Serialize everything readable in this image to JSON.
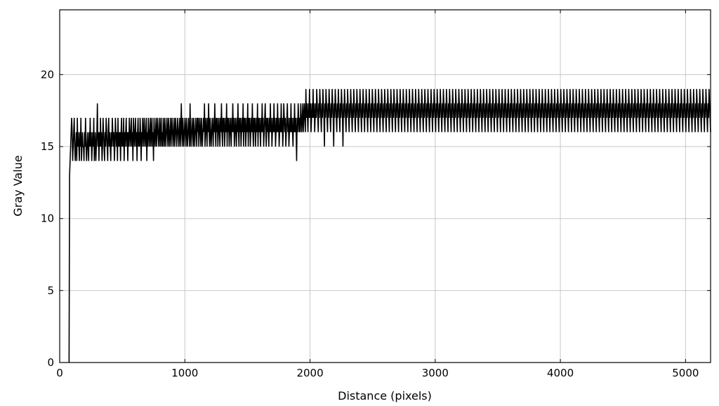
{
  "chart_data": {
    "type": "line",
    "title": "",
    "xlabel": "Distance (pixels)",
    "ylabel": "Gray Value",
    "xlim": [
      0,
      5200
    ],
    "ylim": [
      0,
      24.5
    ],
    "x_ticks": [
      0,
      1000,
      2000,
      3000,
      4000,
      5000
    ],
    "y_ticks": [
      0,
      5,
      10,
      15,
      20
    ],
    "grid": true,
    "legend": "none",
    "colors": {
      "series": "#000000",
      "grid": "#c8c8c8",
      "frame": "#000000",
      "background": "#ffffff"
    },
    "series": [
      {
        "x_start": 75,
        "x_end": 5200,
        "sample_step": 4,
        "values": [
          0,
          13,
          14,
          15,
          16,
          17,
          16,
          14,
          15,
          16,
          17,
          15,
          14,
          15,
          16,
          14,
          17,
          15,
          16,
          15,
          14,
          16,
          15,
          17,
          14,
          15,
          16,
          15,
          15,
          14,
          16,
          15,
          17,
          15,
          14,
          15,
          16,
          15,
          14,
          16,
          15,
          17,
          15,
          16,
          14,
          15,
          16,
          15,
          17,
          14,
          15,
          16,
          14,
          15,
          16,
          18,
          15,
          16,
          14,
          16,
          15,
          17,
          15,
          16,
          14,
          15,
          17,
          16,
          15,
          14,
          16,
          15,
          17,
          16,
          15,
          14,
          16,
          17,
          15,
          16,
          15,
          14,
          16,
          15,
          17,
          16,
          15,
          16,
          14,
          15,
          17,
          16,
          15,
          16,
          14,
          17,
          15,
          16,
          15,
          16,
          14,
          16,
          17,
          15,
          16,
          15,
          17,
          14,
          16,
          15,
          16,
          17,
          15,
          16,
          14,
          16,
          15,
          17,
          16,
          15,
          16,
          17,
          15,
          16,
          14,
          17,
          16,
          15,
          16,
          17,
          15,
          16,
          14,
          16,
          17,
          15,
          16,
          15,
          17,
          16,
          14,
          16,
          15,
          17,
          16,
          15,
          17,
          16,
          15,
          16,
          17,
          14,
          16,
          15,
          17,
          16,
          15,
          16,
          17,
          15,
          16,
          17,
          15,
          16,
          14,
          17,
          16,
          15,
          16,
          17,
          15,
          16,
          17,
          16,
          15,
          16,
          17,
          15,
          16,
          17,
          15,
          16,
          15,
          17,
          16,
          15,
          17,
          16,
          15,
          16,
          17,
          16,
          15,
          17,
          16,
          15,
          16,
          17,
          15,
          16,
          17,
          16,
          15,
          16,
          17,
          15,
          16,
          17,
          16,
          15,
          16,
          17,
          16,
          15,
          16,
          17,
          15,
          16,
          18,
          16,
          15,
          17,
          16,
          15,
          16,
          17,
          16,
          15,
          17,
          16,
          15,
          16,
          17,
          16,
          15,
          18,
          16,
          15,
          16,
          17,
          16,
          15,
          17,
          16,
          15,
          16,
          17,
          16,
          15,
          17,
          16,
          17,
          15,
          16,
          17,
          16,
          15,
          17,
          16,
          15,
          16,
          17,
          16,
          18,
          15,
          16,
          17,
          16,
          15,
          17,
          16,
          18,
          16,
          15,
          17,
          16,
          15,
          16,
          17,
          16,
          15,
          17,
          16,
          18,
          16,
          15,
          17,
          16,
          17,
          15,
          16,
          17,
          16,
          15,
          17,
          16,
          18,
          16,
          15,
          17,
          16,
          17,
          15,
          16,
          17,
          16,
          18,
          15,
          17,
          16,
          17,
          15,
          16,
          17,
          16,
          15,
          17,
          16,
          18,
          16,
          17,
          15,
          16,
          17,
          16,
          15,
          17,
          16,
          18,
          16,
          15,
          17,
          16,
          17,
          15,
          16,
          17,
          16,
          18,
          15,
          17,
          16,
          17,
          15,
          16,
          17,
          16,
          18,
          15,
          17,
          16,
          17,
          15,
          16,
          17,
          16,
          18,
          16,
          15,
          17,
          16,
          17,
          15,
          16,
          17,
          16,
          18,
          15,
          17,
          16,
          17,
          16,
          15,
          17,
          16,
          18,
          16,
          17,
          15,
          16,
          17,
          18,
          16,
          15,
          17,
          16,
          17,
          16,
          15,
          17,
          16,
          18,
          16,
          17,
          15,
          16,
          17,
          16,
          18,
          16,
          17,
          15,
          16,
          17,
          16,
          18,
          16,
          17,
          15,
          16,
          17,
          16,
          18,
          16,
          17,
          15,
          16,
          18,
          17,
          16,
          17,
          15,
          16,
          17,
          18,
          16,
          17,
          15,
          16,
          17,
          16,
          18,
          16,
          17,
          16,
          15,
          17,
          16,
          18,
          16,
          17,
          16,
          14,
          17,
          16,
          18,
          17,
          16,
          17,
          16,
          18,
          17,
          16,
          17,
          18,
          16,
          17,
          18,
          17,
          16,
          19,
          17,
          18,
          17,
          16,
          18,
          17,
          19,
          17,
          18,
          16,
          17,
          18,
          17,
          19,
          17,
          18,
          16,
          17,
          18,
          17,
          19,
          18,
          17,
          16,
          18,
          17,
          19,
          18,
          17,
          16,
          18,
          17,
          19,
          18,
          17,
          15,
          18,
          17,
          19,
          18,
          17,
          16,
          18,
          17,
          19,
          18,
          17,
          16,
          18,
          17,
          19,
          18,
          17,
          15,
          18,
          17,
          19,
          18,
          17,
          16,
          18,
          17,
          19,
          18,
          17,
          16,
          18,
          17,
          19,
          18,
          17,
          15,
          18,
          17,
          19,
          18,
          17,
          16,
          18,
          17,
          19,
          18,
          17,
          16,
          18,
          17,
          19,
          18,
          17,
          16,
          18,
          17,
          19,
          18,
          17,
          16,
          18,
          17,
          19,
          18,
          17,
          16,
          18,
          17,
          19,
          18,
          17,
          16,
          18,
          17,
          19,
          18,
          17,
          16,
          18,
          17,
          19,
          18,
          17,
          16,
          18,
          17,
          19,
          18,
          17,
          16,
          18,
          17,
          19,
          18,
          17,
          16,
          18,
          17,
          19,
          18,
          17,
          16,
          18,
          17,
          19,
          18,
          17,
          16,
          18,
          17,
          19,
          18,
          17,
          16,
          18,
          17,
          19,
          18,
          17,
          16,
          18,
          17,
          19,
          18,
          17,
          16,
          18,
          17,
          19,
          18,
          17,
          16,
          18,
          17,
          19,
          18,
          17,
          16,
          18,
          17,
          19,
          18,
          17,
          16,
          18,
          17,
          19,
          18,
          17,
          16,
          18,
          17,
          19,
          18,
          17,
          16,
          18,
          17,
          19,
          18,
          17,
          16,
          18,
          17,
          19,
          18,
          17,
          16,
          18,
          17,
          19,
          18,
          17,
          16,
          18,
          17,
          19,
          18,
          17,
          16,
          18,
          17,
          19,
          18,
          17,
          16,
          18,
          17,
          19,
          18,
          17,
          16,
          18,
          17,
          19,
          18,
          17,
          16,
          18,
          17,
          19,
          18,
          17,
          16,
          18,
          17,
          19,
          18,
          17,
          16,
          18,
          17,
          19,
          18,
          17,
          16,
          18,
          17,
          19,
          18,
          17,
          16,
          18,
          17,
          19,
          18,
          17,
          16,
          18,
          17,
          19,
          18,
          17,
          16,
          18,
          17,
          19,
          18,
          17,
          16,
          18,
          17,
          19,
          18,
          17,
          16,
          18,
          17,
          19,
          18,
          17,
          16,
          18,
          17,
          19,
          18,
          17,
          16,
          18,
          17,
          19,
          18,
          17,
          16,
          18,
          17,
          19,
          18,
          17,
          16,
          18,
          17,
          19,
          18,
          17,
          16,
          18,
          17,
          19,
          18,
          17,
          16,
          18,
          17,
          19,
          18,
          17,
          16,
          18,
          17,
          19,
          18,
          17,
          16,
          18,
          17,
          19,
          18,
          17,
          16,
          18,
          17,
          19,
          18,
          17,
          16,
          18,
          17,
          19,
          18,
          17,
          16,
          18,
          17,
          19,
          18,
          17,
          16,
          18,
          17,
          19,
          18,
          17,
          16,
          18,
          17,
          19,
          18,
          17,
          16,
          18,
          17,
          19,
          18,
          17,
          16,
          18,
          17,
          19,
          18,
          17,
          16,
          18,
          17,
          19,
          18,
          17,
          16,
          18,
          17,
          19,
          18,
          17,
          16,
          18,
          17,
          19,
          18,
          17,
          16,
          18,
          17,
          19,
          18,
          17,
          16,
          18,
          17,
          19,
          18,
          17,
          16,
          18,
          17,
          19,
          18,
          17,
          16,
          18,
          17,
          19,
          18,
          17,
          16,
          18,
          17,
          19,
          18,
          17,
          16,
          18,
          17,
          19,
          18,
          17,
          16,
          18,
          17,
          19,
          18,
          17,
          16,
          18,
          17,
          19,
          18,
          17,
          16,
          18,
          17,
          19,
          18,
          17,
          16,
          18,
          17,
          19,
          18,
          17,
          16,
          18,
          17,
          19,
          18,
          17,
          16,
          18,
          17,
          19,
          18,
          17,
          16,
          18,
          17,
          19,
          18,
          17,
          16,
          18,
          17,
          19,
          18,
          17,
          16,
          18,
          17,
          19,
          18,
          17,
          16,
          18,
          17,
          19,
          18,
          17,
          16,
          18,
          17,
          19,
          18,
          17,
          16,
          18,
          17,
          19,
          18,
          17,
          16,
          18,
          17,
          19,
          18,
          17,
          16,
          18,
          17,
          19,
          18,
          17,
          16,
          18,
          17,
          19,
          18,
          17,
          16,
          18,
          17,
          19,
          18,
          17,
          16,
          18,
          17,
          19,
          18,
          17,
          16,
          18,
          17,
          19,
          18,
          17,
          16,
          18,
          17,
          19,
          18,
          17,
          16,
          18,
          17,
          19,
          18,
          17,
          16,
          18,
          17,
          19,
          18,
          17,
          16,
          18,
          17,
          19,
          18,
          17,
          16,
          18,
          17,
          19,
          18,
          17,
          16,
          18,
          17,
          19,
          18,
          17,
          16,
          18,
          17,
          19,
          18,
          17,
          16,
          18,
          17,
          19,
          18,
          17,
          16,
          18,
          17,
          19,
          18,
          17,
          16,
          18,
          17,
          19,
          18,
          17,
          16,
          18,
          17,
          19,
          18,
          17,
          16,
          18,
          17,
          19,
          18,
          17,
          16,
          18,
          17,
          19,
          18,
          17,
          16,
          18,
          17,
          19,
          18,
          17,
          16,
          18,
          17,
          19,
          18,
          17,
          16,
          18,
          17,
          19,
          18,
          17,
          16,
          18,
          17,
          19,
          18,
          17,
          16,
          18,
          17,
          19,
          18,
          17,
          16,
          18,
          17,
          19,
          18,
          17,
          16,
          18,
          17,
          19,
          18,
          17,
          16,
          18,
          17,
          19,
          18,
          17,
          16,
          18,
          17,
          19,
          18,
          17,
          16,
          18,
          17,
          19,
          18,
          17,
          16,
          18,
          17,
          19,
          18,
          17,
          16,
          18,
          17,
          19,
          18,
          17,
          16,
          18,
          17,
          19,
          18,
          17,
          16,
          18,
          17,
          19,
          18,
          17,
          16,
          18,
          17,
          19,
          18,
          17,
          16,
          18,
          17,
          19,
          18,
          17,
          16,
          18,
          17,
          19,
          18,
          17,
          16,
          18,
          17,
          19,
          18,
          17,
          16,
          18,
          17,
          19,
          18,
          17,
          16,
          18,
          17,
          19,
          18,
          17,
          16,
          18,
          17,
          19,
          18,
          17,
          16,
          18,
          17,
          19,
          18,
          17,
          16,
          18,
          17,
          19,
          18,
          17,
          16,
          18,
          17,
          19,
          18,
          17,
          16,
          18,
          17,
          19,
          18,
          17,
          16,
          18,
          17,
          19,
          18,
          17,
          16,
          18,
          17,
          19,
          18,
          17,
          16,
          18,
          17,
          19,
          18,
          17,
          16
        ]
      }
    ]
  }
}
